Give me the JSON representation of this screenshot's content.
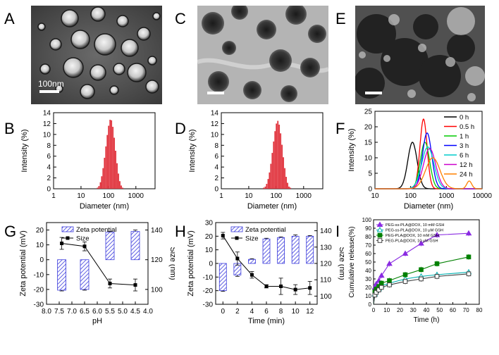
{
  "panels": {
    "A": {
      "letter": "A",
      "scale_label": "100nm"
    },
    "B": {
      "letter": "B"
    },
    "C": {
      "letter": "C"
    },
    "D": {
      "letter": "D"
    },
    "E": {
      "letter": "E"
    },
    "F": {
      "letter": "F"
    },
    "G": {
      "letter": "G"
    },
    "H": {
      "letter": "H"
    },
    "I": {
      "letter": "I"
    }
  },
  "chart_data": [
    {
      "id": "B",
      "type": "bar",
      "xlabel": "Diameter (nm)",
      "ylabel": "Intensity (%)",
      "xscale": "log",
      "xlim": [
        1,
        5000
      ],
      "ylim": [
        0,
        14
      ],
      "xticks": [
        "1",
        "10",
        "100",
        "1000"
      ],
      "yticks": [
        "0",
        "2",
        "4",
        "6",
        "8",
        "10",
        "12",
        "14"
      ],
      "color": "#e0303a",
      "x": [
        40,
        45,
        51,
        57,
        64,
        72,
        81,
        91,
        102,
        115,
        129,
        145,
        163,
        183,
        206,
        232,
        260,
        293,
        329
      ],
      "values": [
        0.2,
        0.5,
        1.2,
        2.3,
        3.8,
        5.7,
        7.8,
        9.9,
        11.6,
        12.7,
        12.6,
        11.4,
        9.4,
        7.0,
        4.7,
        2.8,
        1.4,
        0.6,
        0.2
      ]
    },
    {
      "id": "D",
      "type": "bar",
      "xlabel": "Diameter (nm)",
      "ylabel": "Intensity (%)",
      "xscale": "log",
      "xlim": [
        1,
        5000
      ],
      "ylim": [
        0,
        14
      ],
      "xticks": [
        "1",
        "10",
        "100",
        "1000"
      ],
      "yticks": [
        "0",
        "2",
        "4",
        "6",
        "8",
        "10",
        "12",
        "14"
      ],
      "color": "#e0303a",
      "x": [
        35,
        40,
        45,
        51,
        57,
        64,
        72,
        81,
        91,
        102,
        115,
        129,
        145,
        163,
        183,
        206,
        232,
        260,
        293,
        329
      ],
      "values": [
        0.2,
        0.4,
        0.9,
        1.8,
        3.0,
        4.6,
        6.6,
        8.7,
        10.6,
        12.0,
        12.5,
        11.8,
        10.2,
        8.1,
        5.8,
        3.8,
        2.2,
        1.1,
        0.4,
        0.2
      ]
    },
    {
      "id": "F",
      "type": "line",
      "xlabel": "Diameter (nm)",
      "ylabel": "Intensity (%)",
      "xscale": "log",
      "xlim": [
        10,
        10000
      ],
      "ylim": [
        0,
        25
      ],
      "xticks": [
        "10",
        "100",
        "1000",
        "10000"
      ],
      "yticks": [
        "0",
        "5",
        "10",
        "15",
        "20",
        "25"
      ],
      "legend_position": "top-right",
      "series": [
        {
          "name": "0 h",
          "color": "#000000",
          "mu": 2.05,
          "sigma": 0.13,
          "peak": 15.0
        },
        {
          "name": "0.5 h",
          "color": "#ff0000",
          "mu": 2.36,
          "sigma": 0.1,
          "peak": 22.5
        },
        {
          "name": "1 h",
          "color": "#00cc00",
          "mu": 2.4,
          "sigma": 0.13,
          "peak": 15.0
        },
        {
          "name": "3 h",
          "color": "#0000ff",
          "mu": 2.46,
          "sigma": 0.13,
          "peak": 18.0
        },
        {
          "name": "6 h",
          "color": "#00cccc",
          "mu": 2.48,
          "sigma": 0.17,
          "peak": 13.5
        },
        {
          "name": "12 h",
          "color": "#cc00cc",
          "mu": 2.53,
          "sigma": 0.17,
          "peak": 13.0
        },
        {
          "name": "24 h",
          "color": "#ff8000",
          "mu": 2.62,
          "sigma": 0.2,
          "peak": 10.0,
          "second_mu": 3.64,
          "second_sigma": 0.07,
          "second_peak": 2.5
        }
      ]
    },
    {
      "id": "G",
      "type": "bar+line",
      "xlabel": "pH",
      "ylabel": "Zeta potential (mV)",
      "y2label": "Size (nm)",
      "xlim": [
        8.0,
        4.0
      ],
      "ylim": [
        -30,
        25
      ],
      "y2lim": [
        90,
        145
      ],
      "xticks": [
        "8.0",
        "7.5",
        "7.0",
        "6.5",
        "6.0",
        "5.5",
        "5.0",
        "4.5",
        "4.0"
      ],
      "yticks": [
        "-30",
        "-20",
        "-10",
        "0",
        "10",
        "20"
      ],
      "y2ticks": [
        "100",
        "120",
        "140"
      ],
      "legend": [
        "Zeta potential",
        "Size"
      ],
      "x": [
        7.4,
        6.5,
        5.5,
        4.5
      ],
      "zeta": [
        -20.5,
        -20.0,
        18.5,
        19.0
      ],
      "zeta_err": [
        0.5,
        0.5,
        0.5,
        1.0
      ],
      "size": [
        131,
        129,
        104,
        103
      ],
      "size_err": [
        4,
        3,
        3,
        4
      ]
    },
    {
      "id": "H",
      "type": "bar+line",
      "xlabel": "Time (min)",
      "ylabel": "Zeta potential (mV)",
      "y2label": "Size (nm)",
      "xlim": [
        -1,
        13
      ],
      "ylim": [
        -30,
        30
      ],
      "y2lim": [
        95,
        145
      ],
      "xticks": [
        "0",
        "2",
        "4",
        "6",
        "8",
        "10",
        "12"
      ],
      "yticks": [
        "-30",
        "-20",
        "-10",
        "0",
        "10",
        "20",
        "30"
      ],
      "y2ticks": [
        "100",
        "110",
        "120",
        "130",
        "140"
      ],
      "legend": [
        "Zeta potential",
        "Size"
      ],
      "x": [
        0,
        2,
        4,
        6,
        8,
        10,
        12
      ],
      "zeta": [
        -20,
        -8.5,
        3,
        18,
        19,
        20,
        20
      ],
      "zeta_err": [
        0.5,
        1,
        0.5,
        0.5,
        0.5,
        1,
        0.5
      ],
      "size": [
        137,
        123,
        113,
        106,
        106,
        104,
        105
      ],
      "size_err": [
        2,
        4,
        2,
        1,
        5,
        3,
        4
      ]
    },
    {
      "id": "I",
      "type": "line",
      "xlabel": "Time (h)",
      "ylabel": "Cumulative release(%)",
      "xlim": [
        0,
        80
      ],
      "ylim": [
        0,
        100
      ],
      "xticks": [
        "0",
        "10",
        "20",
        "30",
        "40",
        "50",
        "60",
        "70",
        "80"
      ],
      "yticks": [
        "0",
        "10",
        "20",
        "30",
        "40",
        "50",
        "60",
        "70",
        "80",
        "90",
        "100"
      ],
      "legend_position": "top-left",
      "x": [
        0,
        1,
        2,
        4,
        6,
        12,
        24,
        36,
        48,
        72
      ],
      "series": [
        {
          "name": "PEG-ss-PLA@DOX, 10 mM GSH",
          "color": "#8a2be2",
          "marker": "triangle",
          "values": [
            0,
            20,
            24,
            28,
            34,
            48,
            60,
            72,
            82,
            84
          ]
        },
        {
          "name": "PEG-ss-PLA@DOX, 10 μM GSH",
          "color": "#00b0b0",
          "marker": "triangle-open",
          "values": [
            0,
            12,
            16,
            18,
            22,
            25,
            30,
            33,
            35,
            38
          ]
        },
        {
          "name": "PEG-PLA@DOX, 10 mM GSH",
          "color": "#008000",
          "marker": "square",
          "values": [
            0,
            15,
            18,
            21,
            25,
            28,
            35,
            41,
            48,
            56
          ]
        },
        {
          "name": "PEG-PLA@DOX, 10 μM GSH",
          "color": "#404040",
          "marker": "square-open",
          "values": [
            0,
            11,
            14,
            17,
            20,
            23,
            27,
            30,
            33,
            36
          ]
        }
      ]
    }
  ]
}
